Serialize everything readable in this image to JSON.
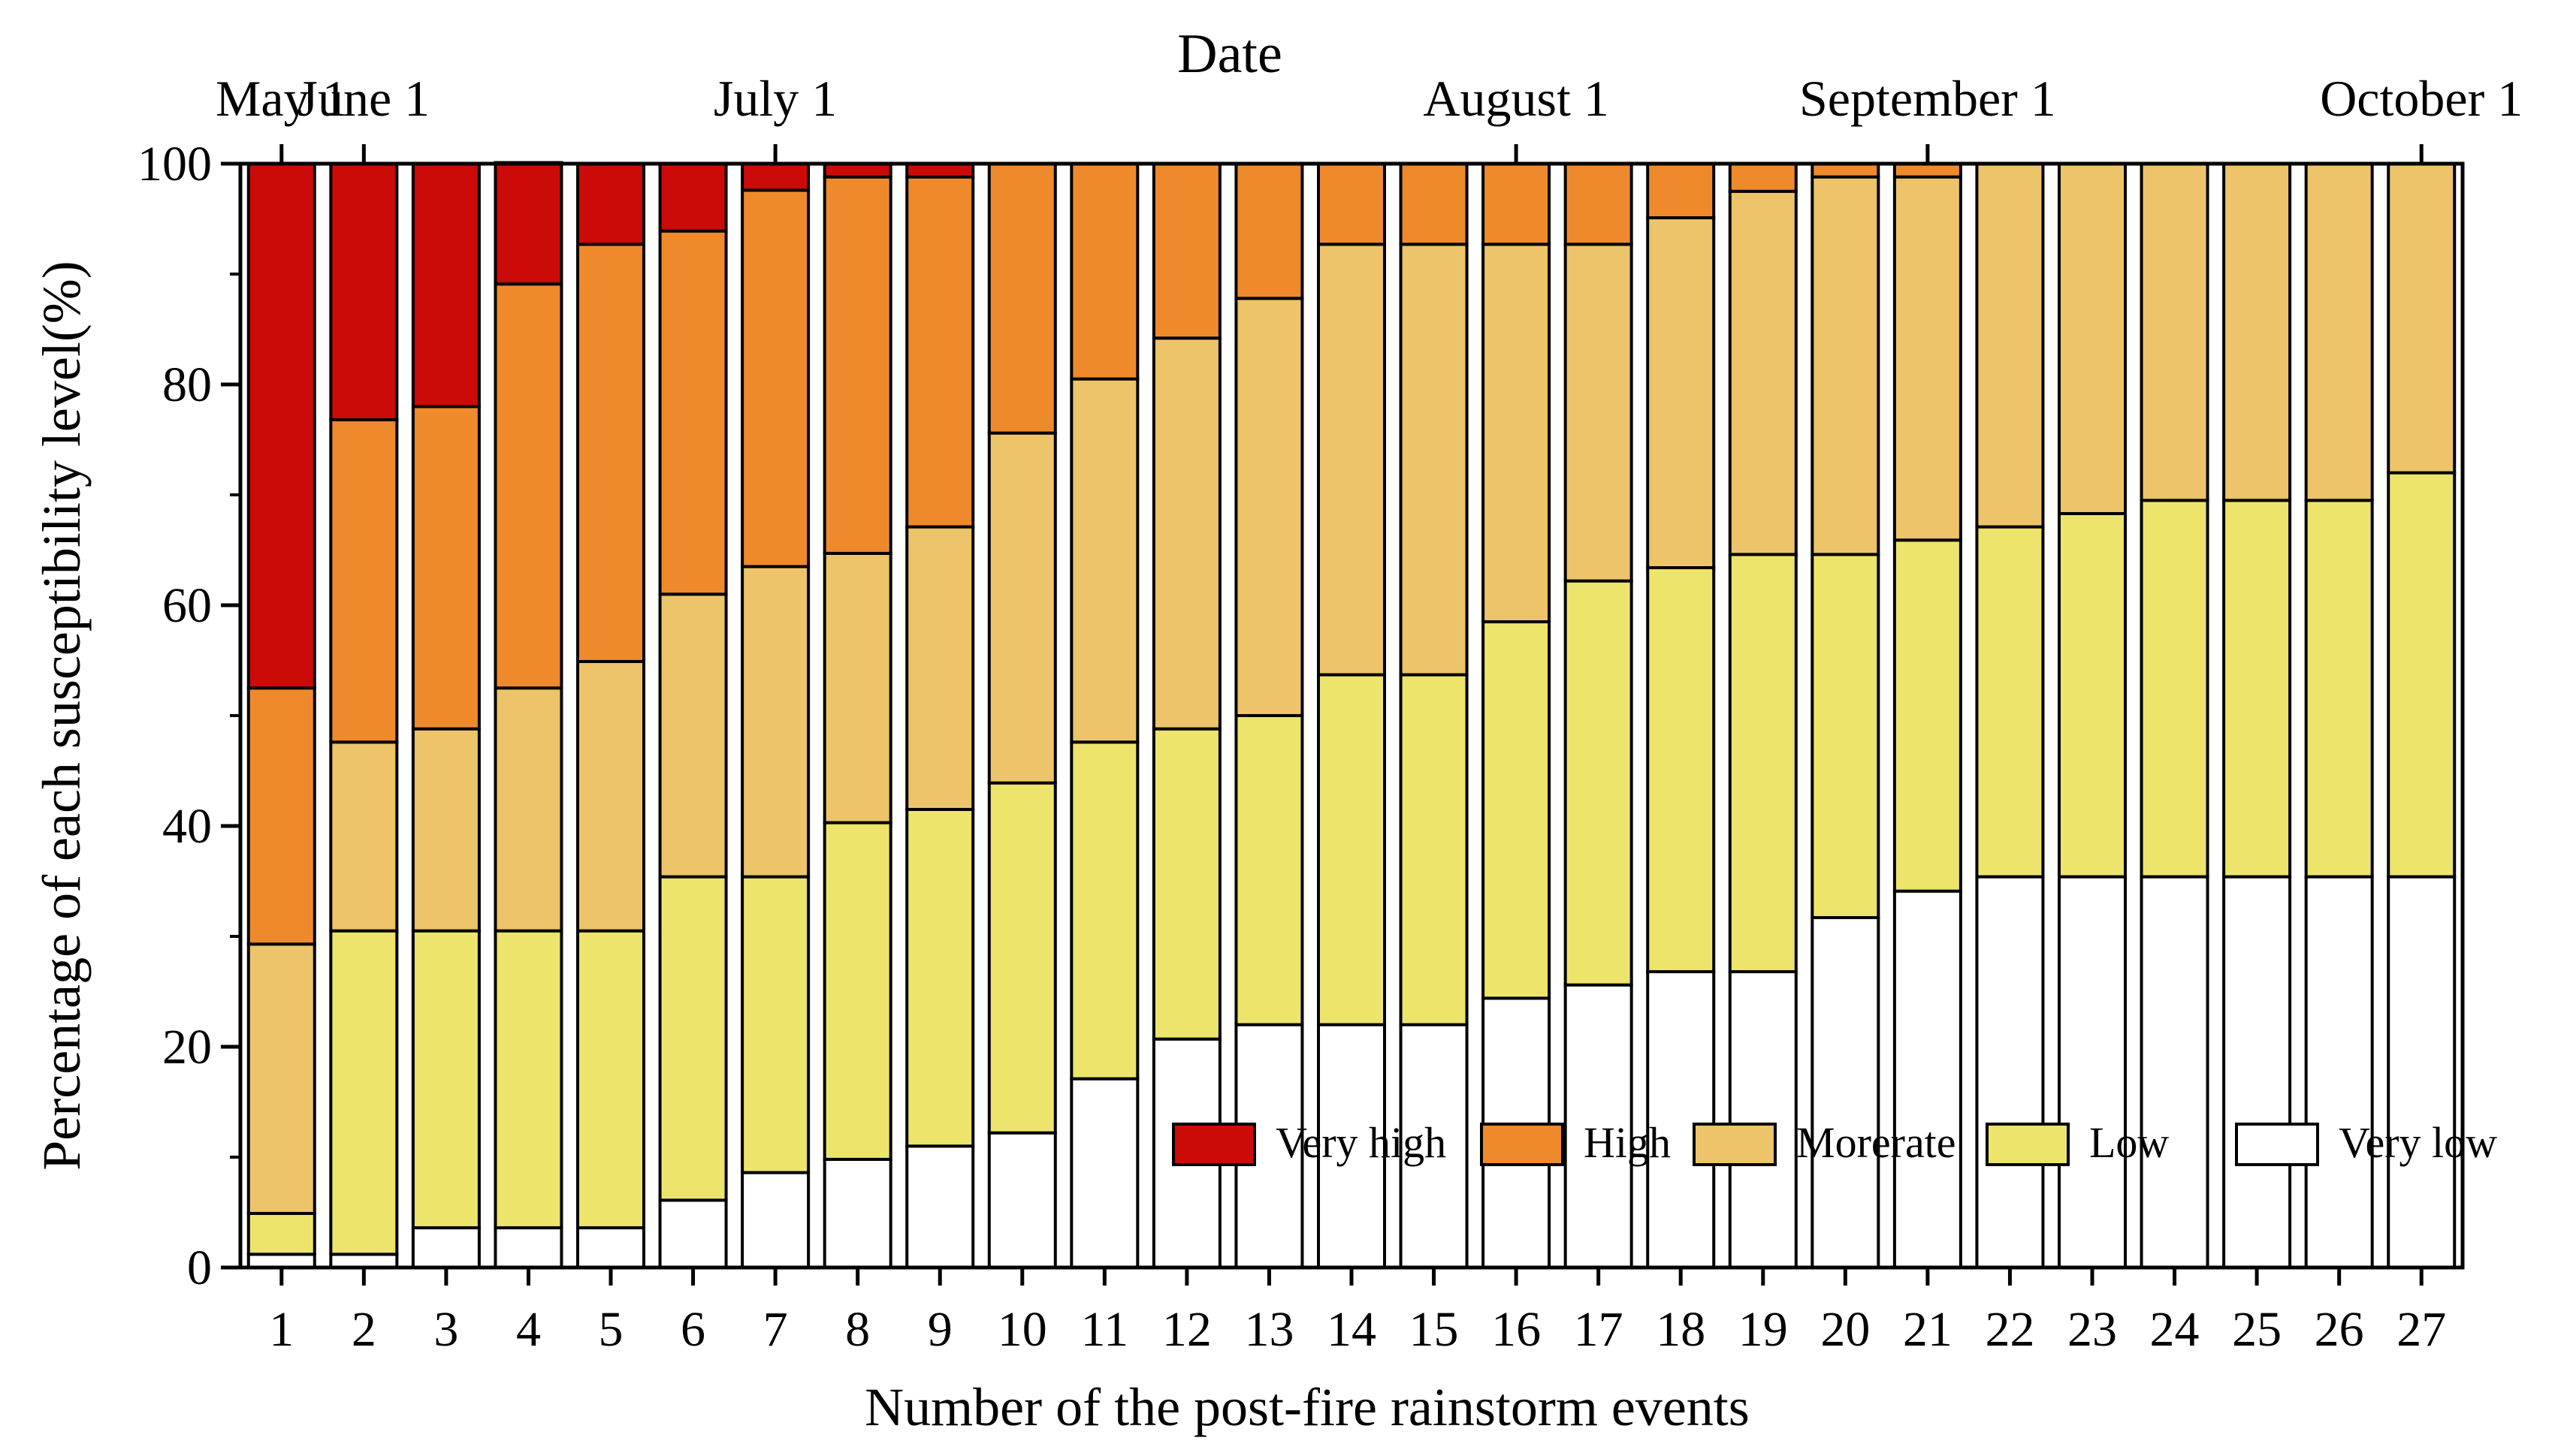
{
  "chart_data": {
    "type": "bar",
    "stacked": true,
    "title": "Date",
    "xlabel": "Number of the post-fire rainstorm events",
    "ylabel": "Percentage of each susceptibility level(%)",
    "ylim": [
      0,
      100
    ],
    "yticks": [
      0,
      20,
      40,
      60,
      80,
      100
    ],
    "categories": [
      "1",
      "2",
      "3",
      "4",
      "5",
      "6",
      "7",
      "8",
      "9",
      "10",
      "11",
      "12",
      "13",
      "14",
      "15",
      "16",
      "17",
      "18",
      "19",
      "20",
      "21",
      "22",
      "23",
      "24",
      "25",
      "26",
      "27"
    ],
    "top_axis": {
      "label": "Date",
      "ticks": [
        {
          "label": "May 1",
          "at_event": 1
        },
        {
          "label": "June 1",
          "at_event": 2
        },
        {
          "label": "July 1",
          "at_event": 7
        },
        {
          "label": "August 1",
          "at_event": 16
        },
        {
          "label": "September 1",
          "at_event": 21
        },
        {
          "label": "October 1",
          "at_event": 27
        }
      ]
    },
    "series": [
      {
        "name": "Very low",
        "color": "#ffffff",
        "values": [
          1.2,
          1.2,
          3.6,
          3.6,
          3.6,
          6.1,
          8.6,
          9.8,
          11,
          12.2,
          17.1,
          20.7,
          22,
          22,
          22,
          24.4,
          25.6,
          26.8,
          26.8,
          31.7,
          34.1,
          35.4,
          35.4,
          35.4,
          35.4,
          35.4,
          35.4
        ]
      },
      {
        "name": "Low",
        "color": "#ede46c",
        "values": [
          3.7,
          29.3,
          26.9,
          26.9,
          26.9,
          29.3,
          26.8,
          30.5,
          30.5,
          31.7,
          30.5,
          28.1,
          28,
          31.7,
          31.7,
          34.1,
          36.6,
          36.6,
          37.8,
          32.9,
          31.8,
          31.7,
          32.9,
          34.1,
          34.1,
          34.1,
          36.6
        ]
      },
      {
        "name": "Morerate",
        "color": "#edc46a",
        "values": [
          24.4,
          17.1,
          18.3,
          22,
          24.4,
          25.6,
          28.1,
          24.4,
          25.6,
          31.7,
          32.9,
          35.4,
          37.8,
          39,
          39,
          34.2,
          30.5,
          31.7,
          32.9,
          34.2,
          32.9,
          32.9,
          31.7,
          30.5,
          30.5,
          30.5,
          28
        ]
      },
      {
        "name": "High",
        "color": "#ef8a2c",
        "values": [
          23.2,
          29.2,
          29.2,
          36.6,
          37.8,
          32.9,
          34.1,
          34.1,
          31.7,
          24.4,
          19.5,
          15.8,
          12.2,
          7.3,
          7.3,
          7.3,
          7.3,
          4.9,
          2.5,
          1.2,
          1.2,
          0,
          0,
          0,
          0,
          0,
          0
        ]
      },
      {
        "name": "Very high",
        "color": "#cc0a08",
        "values": [
          47.5,
          23.2,
          22,
          11,
          7.3,
          6.1,
          2.4,
          1.2,
          1.2,
          0,
          0,
          0,
          0,
          0,
          0,
          0,
          0,
          0,
          0,
          0,
          0,
          0,
          0,
          0,
          0,
          0,
          0
        ]
      }
    ],
    "legend": {
      "placement": "bottom-right",
      "order": [
        "Very high",
        "High",
        "Morerate",
        "Low",
        "Very low"
      ]
    }
  }
}
